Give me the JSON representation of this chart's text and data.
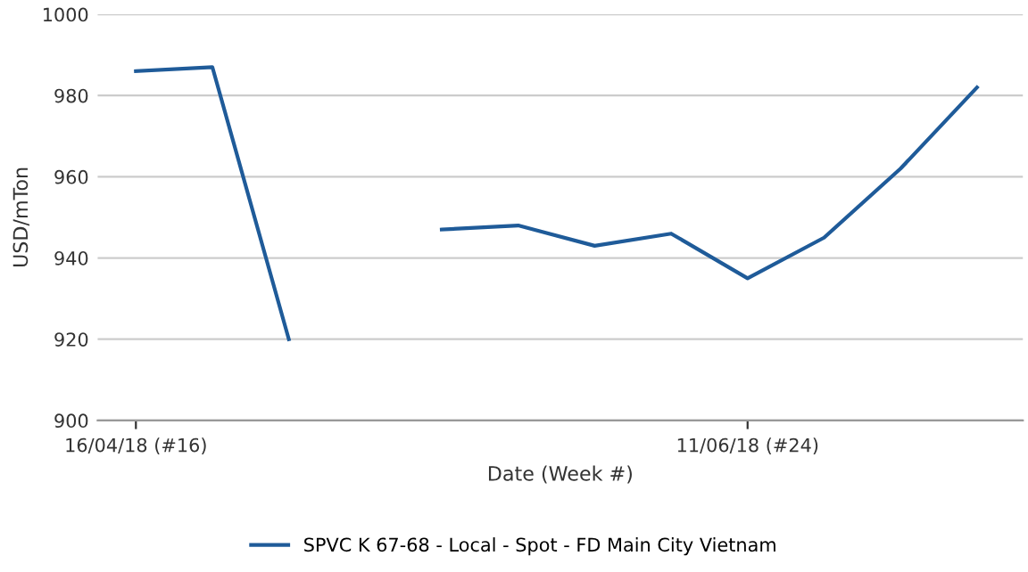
{
  "chart_data": {
    "type": "line",
    "xlabel": "Date (Week #)",
    "ylabel": "USD/mTon",
    "categories": [
      "16/04/18 (#16)",
      null,
      null,
      null,
      null,
      null,
      null,
      null,
      "11/06/18 (#24)",
      null,
      null,
      null
    ],
    "series": [
      {
        "name": "SPVC K 67-68 - Local - Spot - FD Main City Vietnam",
        "color": "#1f5b99",
        "values": [
          986,
          987,
          920,
          null,
          947,
          948,
          943,
          946,
          935,
          945,
          962,
          982
        ]
      }
    ],
    "ylim": [
      900,
      1000
    ],
    "yticks": [
      900,
      920,
      940,
      960,
      980,
      1000
    ],
    "grid": "y",
    "legend": "bottom",
    "marker": "none",
    "line_style": "solid"
  }
}
